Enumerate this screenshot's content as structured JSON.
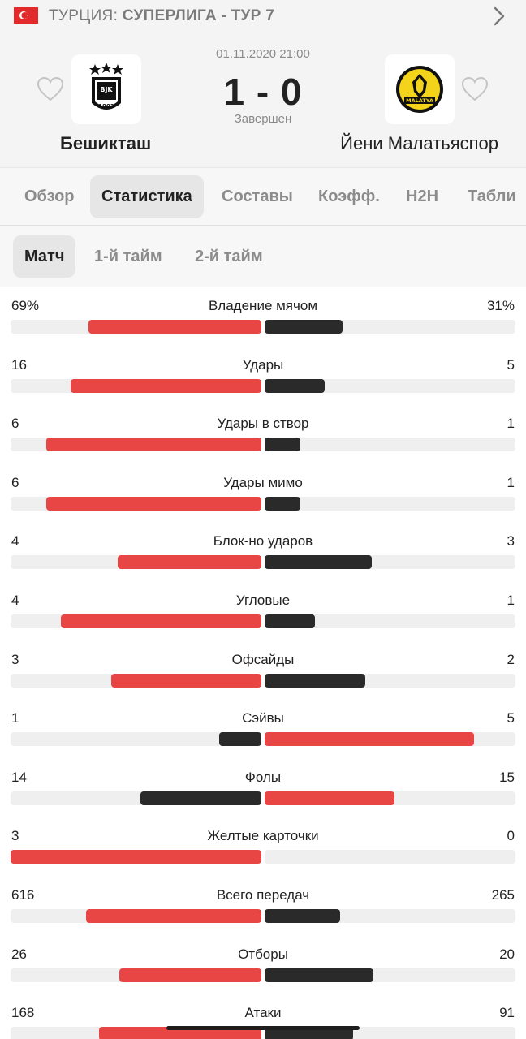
{
  "league": {
    "country": "ТУРЦИЯ:",
    "competition": "СУПЕРЛИГА - ТУР 7"
  },
  "match": {
    "date": "01.11.2020 21:00",
    "score": "1 - 0",
    "status": "Завершен",
    "home": {
      "name": "Бешикташ",
      "logo_text": "BJK",
      "logo_year": "1903"
    },
    "away": {
      "name": "Йени Малатьяспор",
      "logo_text": "MALATYA"
    }
  },
  "tabs": [
    "Обзор",
    "Статистика",
    "Составы",
    "Коэфф.",
    "H2H",
    "Табли"
  ],
  "active_tab": "Статистика",
  "subtabs": [
    "Матч",
    "1-й тайм",
    "2-й тайм"
  ],
  "active_subtab": "Матч",
  "colors": {
    "winner": "#e84545",
    "loser": "#2a2a2a",
    "track": "#efefef"
  },
  "stats": [
    {
      "label": "Владение мячом",
      "home": "69%",
      "away": "31%",
      "home_value": 69,
      "away_value": 31
    },
    {
      "label": "Удары",
      "home": "16",
      "away": "5",
      "home_value": 16,
      "away_value": 5
    },
    {
      "label": "Удары в створ",
      "home": "6",
      "away": "1",
      "home_value": 6,
      "away_value": 1
    },
    {
      "label": "Удары мимо",
      "home": "6",
      "away": "1",
      "home_value": 6,
      "away_value": 1
    },
    {
      "label": "Блок-но ударов",
      "home": "4",
      "away": "3",
      "home_value": 4,
      "away_value": 3
    },
    {
      "label": "Угловые",
      "home": "4",
      "away": "1",
      "home_value": 4,
      "away_value": 1
    },
    {
      "label": "Офсайды",
      "home": "3",
      "away": "2",
      "home_value": 3,
      "away_value": 2
    },
    {
      "label": "Сэйвы",
      "home": "1",
      "away": "5",
      "home_value": 1,
      "away_value": 5
    },
    {
      "label": "Фолы",
      "home": "14",
      "away": "15",
      "home_value": 14,
      "away_value": 15
    },
    {
      "label": "Желтые карточки",
      "home": "3",
      "away": "0",
      "home_value": 3,
      "away_value": 0
    },
    {
      "label": "Всего передач",
      "home": "616",
      "away": "265",
      "home_value": 616,
      "away_value": 265
    },
    {
      "label": "Отборы",
      "home": "26",
      "away": "20",
      "home_value": 26,
      "away_value": 20
    },
    {
      "label": "Атаки",
      "home": "168",
      "away": "91",
      "home_value": 168,
      "away_value": 91
    }
  ]
}
